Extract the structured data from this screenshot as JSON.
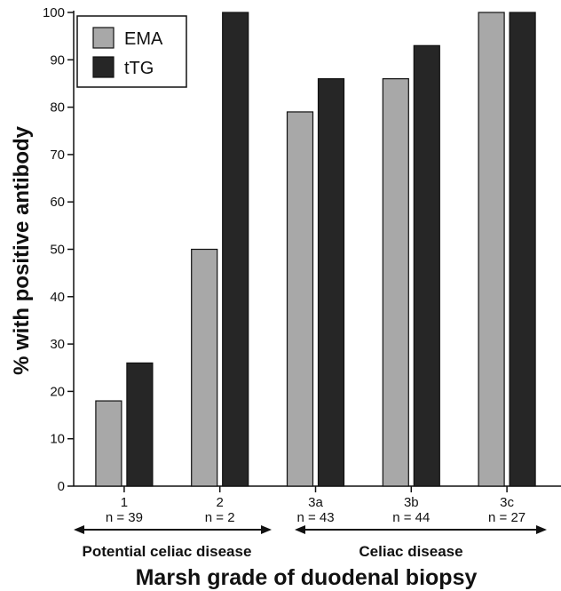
{
  "chart_data": {
    "type": "bar",
    "categories": [
      "1",
      "2",
      "3a",
      "3b",
      "3c"
    ],
    "sample_sizes": [
      "n = 39",
      "n = 2",
      "n = 43",
      "n = 44",
      "n = 27"
    ],
    "series": [
      {
        "name": "EMA",
        "values": [
          18,
          50,
          79,
          86,
          100
        ],
        "color": "#a8a8a8"
      },
      {
        "name": "tTG",
        "values": [
          26,
          100,
          86,
          93,
          100
        ],
        "color": "#262626"
      }
    ],
    "ylabel": "% with positive antibody",
    "xlabel": "Marsh grade of duodenal biopsy",
    "ylim": [
      0,
      100
    ],
    "yticks": [
      0,
      10,
      20,
      30,
      40,
      50,
      60,
      70,
      80,
      90,
      100
    ],
    "grid": false,
    "legend_position": "top-left",
    "groups": [
      {
        "label": "Potential celiac disease",
        "categories": [
          "1",
          "2"
        ]
      },
      {
        "label": "Celiac disease",
        "categories": [
          "3a",
          "3b",
          "3c"
        ]
      }
    ]
  }
}
